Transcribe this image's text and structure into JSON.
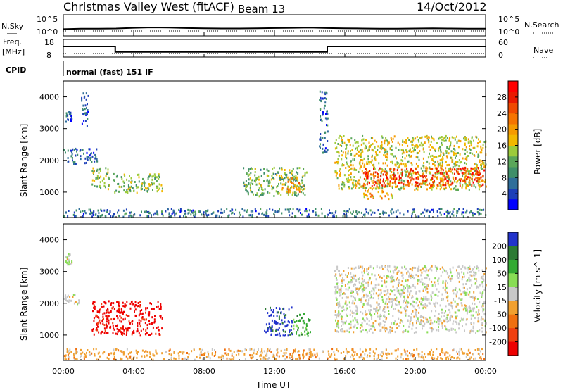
{
  "header": {
    "title": "Christmas Valley West (fitACF)",
    "beam": "Beam 13",
    "date": "14/Oct/2012"
  },
  "panel_labels": {
    "nsky": "N.Sky",
    "nsky_tick_hi": "10^5",
    "nsky_tick_lo": "10^0",
    "nsearch": "N.Search",
    "nsearch_tick_hi": "10^5",
    "nsearch_tick_lo": "10^0",
    "freq": "Freq.",
    "freq_unit": "[MHz]",
    "freq_tick_hi": "18",
    "freq_tick_lo": "8",
    "nave": "Nave",
    "nave_tick_hi": "60",
    "nave_tick_lo": "0",
    "cpid": "CPID",
    "cpid_text": "normal (fast) 151 IF"
  },
  "colors": {
    "power": [
      "#0000ff",
      "#1c3fb8",
      "#2f6e9a",
      "#3f8f6a",
      "#5aa65a",
      "#9ccb3c",
      "#f2b800",
      "#f59a00",
      "#f57400",
      "#f04a00",
      "#ea1a00",
      "#ff0000"
    ],
    "velocity": [
      "#2233cc",
      "#2d7a34",
      "#33aa33",
      "#88dd55",
      "#c8c8c8",
      "#f0a030",
      "#f07010",
      "#f04010",
      "#ee0000"
    ],
    "ground": "#bbbbbb"
  },
  "chart_data": [
    {
      "type": "line",
      "title": "N.Sky / N.Search",
      "x": [
        0,
        1,
        2,
        3,
        4,
        5,
        6,
        7,
        8,
        9,
        10,
        11,
        12,
        13,
        14,
        15,
        16,
        17,
        18,
        19,
        20,
        21,
        22,
        23,
        24
      ],
      "series": [
        {
          "name": "N.Sky",
          "values": [
            1.6,
            1.7,
            1.7,
            1.75,
            1.9,
            2.0,
            1.95,
            1.85,
            1.8,
            1.75,
            1.75,
            1.8,
            1.85,
            1.9,
            1.95,
            1.85,
            1.8,
            1.75,
            1.7,
            1.7,
            1.75,
            1.8,
            1.75,
            1.7,
            1.7
          ]
        }
      ],
      "ylim": [
        0,
        5
      ],
      "xlim": [
        0,
        24
      ]
    },
    {
      "type": "line",
      "title": "Freq. / Nave",
      "x": [
        0,
        2.95,
        2.95,
        15.0,
        15.0,
        24
      ],
      "series": [
        {
          "name": "Freq.",
          "values": [
            14.0,
            14.0,
            10.9,
            10.9,
            14.0,
            14.0
          ]
        }
      ],
      "nave_level": 12,
      "ylim": [
        8,
        18
      ],
      "y2lim": [
        0,
        60
      ],
      "xlim": [
        0,
        24
      ]
    },
    {
      "type": "heatmap",
      "title": "Power [dB]",
      "ylabel": "Slant Range [km]",
      "xlim": [
        0,
        24
      ],
      "ylim": [
        200,
        4500
      ],
      "yticks": [
        "1000",
        "2000",
        "3000",
        "4000"
      ],
      "colorbar_label": "Power [dB]",
      "colorbar_ticks": [
        "4",
        "8",
        "12",
        "16",
        "20",
        "24",
        "28"
      ],
      "colorbar_range": [
        0,
        32
      ],
      "blobs": [
        {
          "t": [
            0.05,
            0.45
          ],
          "r": [
            3200,
            3600
          ],
          "v": 5
        },
        {
          "t": [
            1.0,
            1.4
          ],
          "r": [
            3100,
            4300
          ],
          "v": 4
        },
        {
          "t": [
            0.0,
            1.9
          ],
          "r": [
            1900,
            2400
          ],
          "v": 5
        },
        {
          "t": [
            1.6,
            2.6
          ],
          "r": [
            1100,
            1800
          ],
          "v": 14
        },
        {
          "t": [
            2.8,
            5.6
          ],
          "r": [
            1000,
            1600
          ],
          "v": 13
        },
        {
          "t": [
            10.2,
            13.8
          ],
          "r": [
            900,
            1800
          ],
          "v": 12
        },
        {
          "t": [
            12.4,
            13.6
          ],
          "r": [
            1000,
            1500
          ],
          "v": 20
        },
        {
          "t": [
            14.5,
            15.0
          ],
          "r": [
            2200,
            4200
          ],
          "v": 6
        },
        {
          "t": [
            15.4,
            24
          ],
          "r": [
            1100,
            2800
          ],
          "v": 16
        },
        {
          "t": [
            17.0,
            23.9
          ],
          "r": [
            1200,
            1800
          ],
          "v": 27
        },
        {
          "t": [
            17.0,
            18.7
          ],
          "r": [
            800,
            1100
          ],
          "v": 20
        },
        {
          "t": [
            0.0,
            24
          ],
          "r": [
            250,
            500
          ],
          "v": 6
        }
      ]
    },
    {
      "type": "heatmap",
      "title": "Velocity [m s^-1]",
      "xlabel": "Time UT",
      "ylabel": "Slant Range [km]",
      "xlim": [
        0,
        24
      ],
      "ylim": [
        200,
        4500
      ],
      "xticks": [
        "00:00",
        "04:00",
        "08:00",
        "12:00",
        "16:00",
        "20:00",
        "00:00"
      ],
      "yticks": [
        "1000",
        "2000",
        "3000",
        "4000"
      ],
      "colorbar_label": "Velocity [m s^-1]",
      "colorbar_ticks": [
        "200",
        "100",
        "50",
        "15",
        "-15",
        "-50",
        "-100",
        "-200"
      ],
      "blobs": [
        {
          "t": [
            0.05,
            0.45
          ],
          "r": [
            3200,
            3600
          ],
          "v": 4
        },
        {
          "t": [
            0.0,
            0.9
          ],
          "r": [
            1900,
            2300
          ],
          "v": 4
        },
        {
          "t": [
            1.6,
            5.6
          ],
          "r": [
            1000,
            2100
          ],
          "v": 8
        },
        {
          "t": [
            11.4,
            13.0
          ],
          "r": [
            1000,
            1900
          ],
          "v": 0
        },
        {
          "t": [
            13.0,
            14.0
          ],
          "r": [
            1000,
            1700
          ],
          "v": 2
        },
        {
          "t": [
            15.4,
            24
          ],
          "r": [
            1100,
            3200
          ],
          "v": 4
        },
        {
          "t": [
            0.0,
            24
          ],
          "r": [
            250,
            600
          ],
          "v": 5
        }
      ]
    }
  ]
}
